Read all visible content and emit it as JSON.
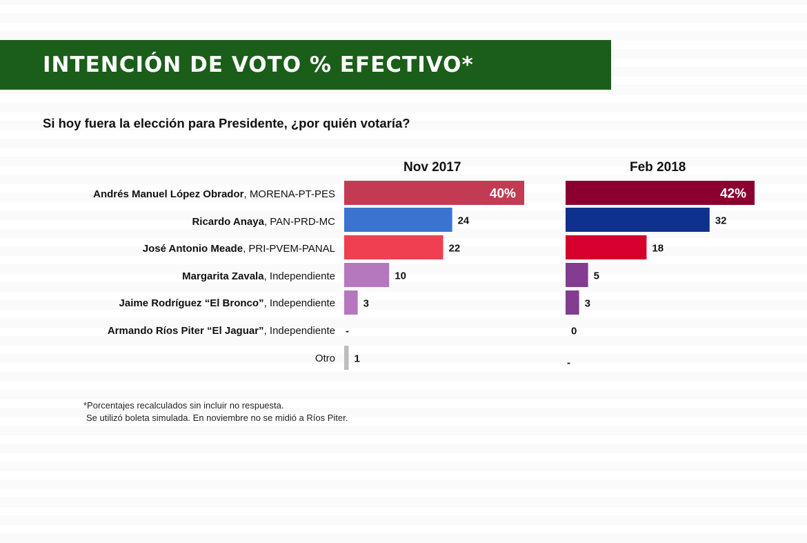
{
  "header": {
    "title": "INTENCIÓN DE VOTO % EFECTIVO*"
  },
  "question": "Si hoy fuera la elección para Presidente, ¿por quién votaría?",
  "footnote": {
    "line1": "*Porcentajes recalculados sin incluir no respuesta.",
    "line2": "Se utilizó boleta simulada. En noviembre no se midió a Ríos Piter."
  },
  "chart_data": {
    "type": "bar",
    "orientation": "horizontal",
    "title": "Si hoy fuera la elección para Presidente, ¿por quién votaría?",
    "xlim": [
      0,
      42
    ],
    "categories": [
      {
        "name": "Andrés Manuel López Obrador",
        "party": "MORENA-PT-PES"
      },
      {
        "name": "Ricardo Anaya",
        "party": "PAN-PRD-MC"
      },
      {
        "name": "José Antonio Meade",
        "party": "PRI-PVEM-PANAL"
      },
      {
        "name": "Margarita Zavala",
        "party": "Independiente"
      },
      {
        "name": "Jaime Rodríguez “El Bronco”",
        "party": "Independiente"
      },
      {
        "name": "Armando Ríos Piter “El Jaguar”",
        "party": "Independiente"
      },
      {
        "name": "Otro",
        "party": ""
      }
    ],
    "series": [
      {
        "name": "Nov 2017",
        "values": [
          40,
          24,
          22,
          10,
          3,
          null,
          1
        ],
        "labels": [
          "40%",
          "24",
          "22",
          "10",
          "3",
          "-",
          "1"
        ],
        "colors": [
          "#c23b52",
          "#3b74d0",
          "#ef3f50",
          "#b577be",
          "#b577be",
          "#999999",
          "#bdbdbd"
        ]
      },
      {
        "name": "Feb 2018",
        "values": [
          42,
          32,
          18,
          5,
          3,
          0,
          null
        ],
        "labels": [
          "42%",
          "32",
          "18",
          "5",
          "3",
          "0",
          "-"
        ],
        "colors": [
          "#8c0030",
          "#0d318c",
          "#d6002c",
          "#833c90",
          "#833c90",
          "#833c90",
          "#999999"
        ]
      }
    ]
  }
}
